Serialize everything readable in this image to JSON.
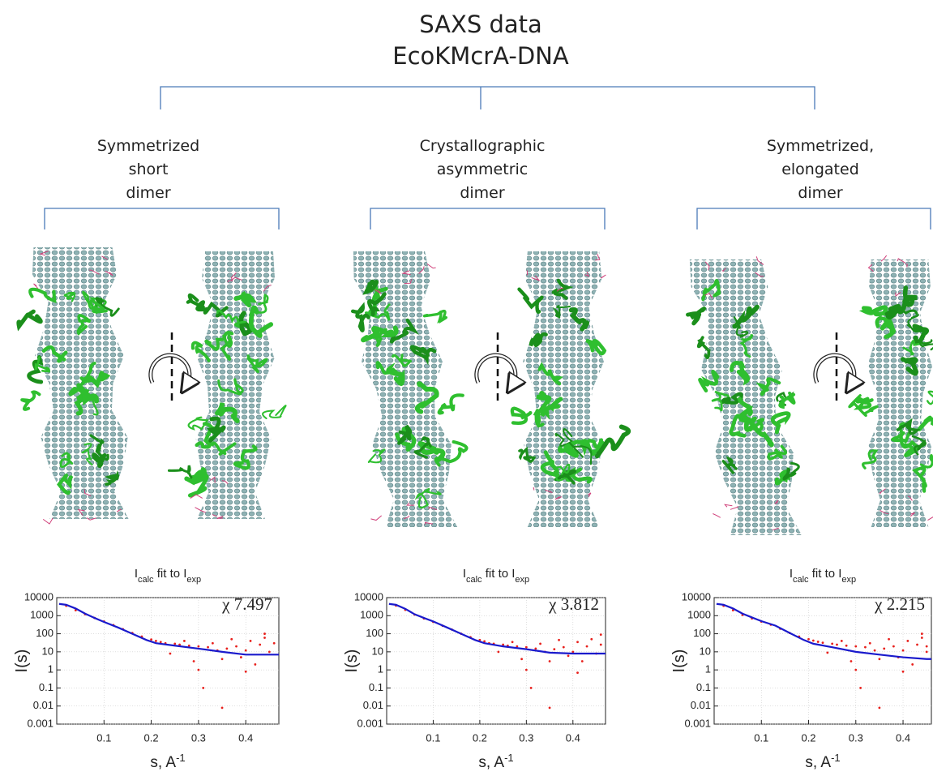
{
  "header": {
    "title": [
      "SAXS data",
      "EcoKMcrA-DNA"
    ]
  },
  "groups": [
    {
      "label": [
        "Symmetrized",
        "short",
        "dimer"
      ]
    },
    {
      "label": [
        "Crystallographic",
        "asymmetric",
        "dimer"
      ]
    },
    {
      "label": [
        "Symmetrized,",
        "elongated",
        "dimer"
      ]
    }
  ],
  "chart_data": [
    {
      "type": "line",
      "title": [
        {
          "text": "I"
        },
        {
          "text": "calc",
          "sub": true
        },
        {
          "text": " fit to I"
        },
        {
          "text": "exp",
          "sub": true
        }
      ],
      "annotation": "χ 7.497",
      "ylabel": "I(s)",
      "xlabel": [
        {
          "text": "s, A"
        },
        {
          "text": "-1",
          "sup": true
        }
      ],
      "log_y": true,
      "grid": true,
      "xlim": [
        0,
        0.47
      ],
      "xticks": [
        0.1,
        0.2,
        0.3,
        0.4
      ],
      "ylim": [
        0.001,
        10000
      ],
      "yticks": [
        0.001,
        0.01,
        0.1,
        1,
        10,
        100,
        1000,
        10000
      ],
      "series": [
        {
          "mode": "markers",
          "color": "#e8201c",
          "x": [
            0.02,
            0.04,
            0.06,
            0.08,
            0.1,
            0.12,
            0.14,
            0.16,
            0.18,
            0.2,
            0.21,
            0.22,
            0.23,
            0.24,
            0.25,
            0.26,
            0.27,
            0.28,
            0.29,
            0.3,
            0.31,
            0.32,
            0.33,
            0.34,
            0.35,
            0.36,
            0.37,
            0.38,
            0.39,
            0.4,
            0.41,
            0.42,
            0.43,
            0.44,
            0.45,
            0.46,
            0.3,
            0.35,
            0.4,
            0.44
          ],
          "values": [
            3500,
            2000,
            1200,
            750,
            480,
            300,
            180,
            110,
            70,
            48,
            40,
            35,
            30,
            8,
            28,
            25,
            40,
            22,
            3,
            20,
            0.1,
            18,
            30,
            12,
            0.008,
            15,
            50,
            20,
            5,
            12,
            40,
            2,
            25,
            60,
            10,
            30,
            1,
            4,
            0.8,
            100
          ]
        },
        {
          "mode": "line",
          "color": "#1a1acc",
          "x": [
            0.005,
            0.02,
            0.04,
            0.06,
            0.08,
            0.1,
            0.13,
            0.16,
            0.19,
            0.21,
            0.25,
            0.3,
            0.35,
            0.4,
            0.45,
            0.47
          ],
          "values": [
            4500,
            4000,
            2500,
            1300,
            750,
            450,
            220,
            100,
            45,
            30,
            22,
            15,
            10,
            7,
            7,
            7
          ]
        }
      ]
    },
    {
      "type": "line",
      "title": [
        {
          "text": "I"
        },
        {
          "text": "calc",
          "sub": true
        },
        {
          "text": " fit to I"
        },
        {
          "text": "exp",
          "sub": true
        }
      ],
      "annotation": "χ 3.812",
      "ylabel": "I(s)",
      "xlabel": [
        {
          "text": "s, A"
        },
        {
          "text": "-1",
          "sup": true
        }
      ],
      "log_y": true,
      "grid": true,
      "xlim": [
        0,
        0.47
      ],
      "xticks": [
        0.1,
        0.2,
        0.3,
        0.4
      ],
      "ylim": [
        0.001,
        10000
      ],
      "yticks": [
        0.001,
        0.01,
        0.1,
        1,
        10,
        100,
        1000,
        10000
      ],
      "series": [
        {
          "mode": "markers",
          "color": "#e8201c",
          "x": [
            0.02,
            0.04,
            0.06,
            0.08,
            0.1,
            0.12,
            0.14,
            0.16,
            0.18,
            0.2,
            0.21,
            0.22,
            0.23,
            0.24,
            0.25,
            0.26,
            0.27,
            0.28,
            0.29,
            0.3,
            0.31,
            0.32,
            0.33,
            0.34,
            0.35,
            0.36,
            0.37,
            0.38,
            0.39,
            0.4,
            0.41,
            0.42,
            0.43,
            0.44,
            0.45,
            0.46,
            0.3,
            0.35,
            0.41,
            0.46
          ],
          "values": [
            3600,
            2100,
            1150,
            700,
            450,
            280,
            170,
            100,
            65,
            45,
            38,
            30,
            28,
            10,
            25,
            22,
            35,
            20,
            4,
            18,
            0.1,
            15,
            28,
            10,
            0.008,
            14,
            45,
            18,
            6,
            10,
            35,
            3,
            20,
            50,
            8,
            25,
            1,
            3,
            0.7,
            90
          ]
        },
        {
          "mode": "line",
          "color": "#1a1acc",
          "x": [
            0.005,
            0.02,
            0.04,
            0.06,
            0.08,
            0.1,
            0.13,
            0.16,
            0.19,
            0.21,
            0.25,
            0.3,
            0.35,
            0.4,
            0.45,
            0.47
          ],
          "values": [
            4500,
            4000,
            2400,
            1200,
            750,
            480,
            220,
            100,
            45,
            30,
            20,
            14,
            9,
            8,
            8,
            8
          ]
        }
      ]
    },
    {
      "type": "line",
      "title": [
        {
          "text": "I"
        },
        {
          "text": "calc",
          "sub": true
        },
        {
          "text": " fit to I"
        },
        {
          "text": "exp",
          "sub": true
        }
      ],
      "annotation": "χ 2.215",
      "ylabel": "I(s)",
      "xlabel": [
        {
          "text": "s, A"
        },
        {
          "text": "-1",
          "sup": true
        }
      ],
      "log_y": true,
      "grid": true,
      "xlim": [
        0,
        0.46
      ],
      "xticks": [
        0.1,
        0.2,
        0.3,
        0.4
      ],
      "ylim": [
        0.001,
        10000
      ],
      "yticks": [
        0.001,
        0.01,
        0.1,
        1,
        10,
        100,
        1000,
        10000
      ],
      "series": [
        {
          "mode": "markers",
          "color": "#e8201c",
          "x": [
            0.02,
            0.04,
            0.06,
            0.08,
            0.1,
            0.12,
            0.14,
            0.16,
            0.18,
            0.2,
            0.21,
            0.22,
            0.23,
            0.24,
            0.25,
            0.26,
            0.27,
            0.28,
            0.29,
            0.3,
            0.31,
            0.32,
            0.33,
            0.34,
            0.35,
            0.36,
            0.37,
            0.38,
            0.39,
            0.4,
            0.41,
            0.42,
            0.43,
            0.44,
            0.45,
            0.3,
            0.35,
            0.4,
            0.44,
            0.45
          ],
          "values": [
            3500,
            2000,
            1100,
            700,
            470,
            320,
            190,
            110,
            70,
            50,
            42,
            36,
            32,
            9,
            28,
            25,
            40,
            22,
            3,
            20,
            0.1,
            18,
            30,
            12,
            0.008,
            15,
            50,
            20,
            5,
            12,
            40,
            2,
            25,
            60,
            10,
            1,
            4,
            0.8,
            100,
            20
          ]
        },
        {
          "mode": "line",
          "color": "#1a1acc",
          "x": [
            0.005,
            0.02,
            0.04,
            0.06,
            0.08,
            0.1,
            0.13,
            0.16,
            0.19,
            0.21,
            0.25,
            0.3,
            0.35,
            0.4,
            0.45,
            0.46
          ],
          "values": [
            4500,
            4000,
            2500,
            1300,
            800,
            500,
            280,
            110,
            45,
            28,
            18,
            10,
            7,
            5,
            4,
            4
          ]
        }
      ]
    }
  ]
}
